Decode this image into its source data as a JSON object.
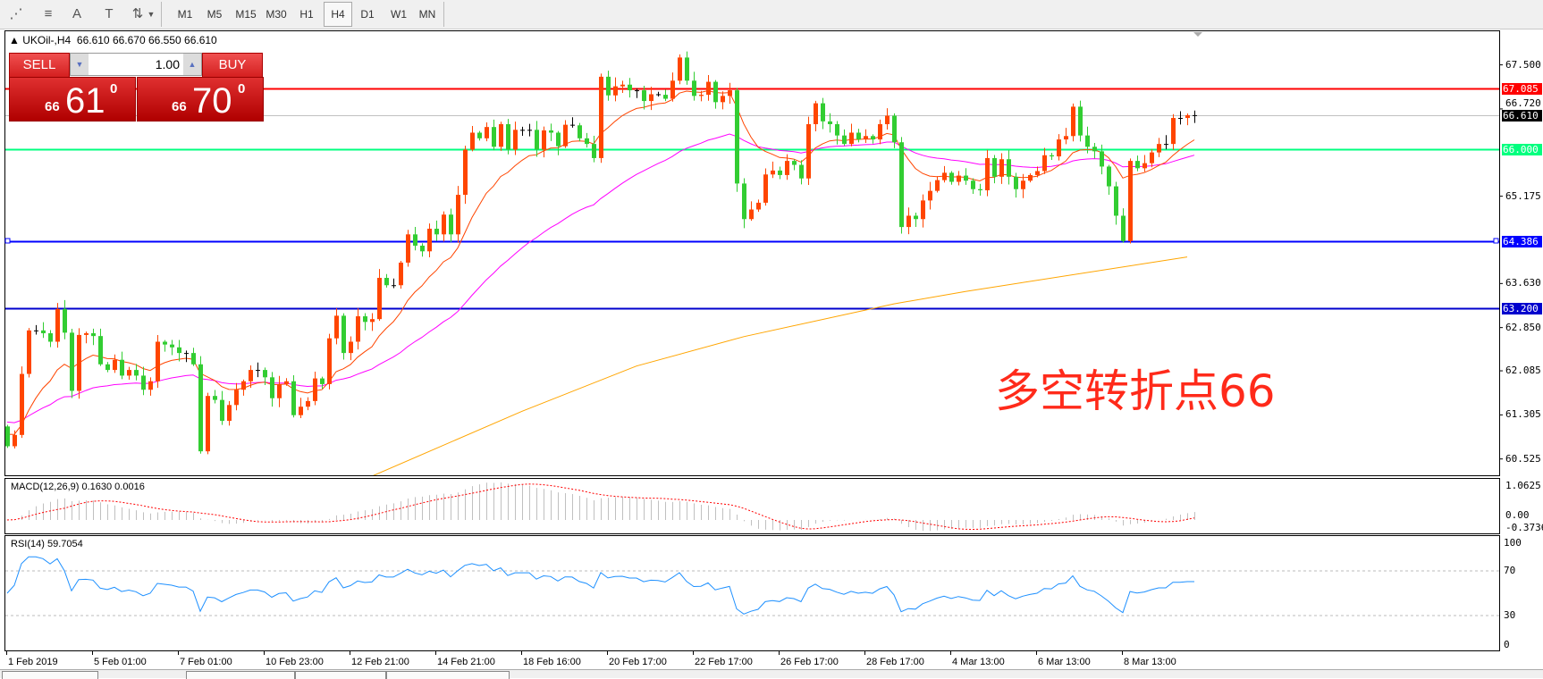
{
  "toolbar": {
    "tools": [
      {
        "name": "elliott-wave-icon",
        "glyph": "⋰"
      },
      {
        "name": "fibonacci-icon",
        "glyph": "≡"
      },
      {
        "name": "text-icon",
        "glyph": "A"
      },
      {
        "name": "text-label-icon",
        "glyph": "T"
      },
      {
        "name": "arrows-icon",
        "glyph": "⇅"
      }
    ],
    "timeframes": [
      "M1",
      "M5",
      "M15",
      "M30",
      "H1",
      "H4",
      "D1",
      "W1",
      "MN"
    ],
    "active_timeframe": "H4"
  },
  "header": {
    "symbol": "UKOil-,H4",
    "ohlc": "66.610 66.670 66.550 66.610"
  },
  "trade_panel": {
    "sell_label": "SELL",
    "buy_label": "BUY",
    "lot": "1.00",
    "sell_prefix": "66",
    "sell_big": "61",
    "sell_sup": "0",
    "buy_prefix": "66",
    "buy_big": "70",
    "buy_sup": "0"
  },
  "annotation": "多空转折点66",
  "price_axis": [
    "67.500",
    "66.720",
    "65.175",
    "63.630",
    "62.850",
    "62.085",
    "61.305",
    "60.525"
  ],
  "levels": [
    {
      "price": 67.085,
      "label": "67.085",
      "color": "#ff0000"
    },
    {
      "price": 66.61,
      "label": "66.610",
      "color": "#000000",
      "line": "#c0c0c0"
    },
    {
      "price": 66.0,
      "label": "66.000",
      "color": "#00ff7f"
    },
    {
      "price": 64.386,
      "label": "64.386",
      "color": "#0000ff"
    },
    {
      "price": 63.2,
      "label": "63.200",
      "color": "#0000cd"
    }
  ],
  "time_axis": [
    "1 Feb 2019",
    "5 Feb 01:00",
    "7 Feb 01:00",
    "10 Feb 23:00",
    "12 Feb 21:00",
    "14 Feb 21:00",
    "18 Feb 16:00",
    "20 Feb 17:00",
    "22 Feb 17:00",
    "26 Feb 17:00",
    "28 Feb 17:00",
    "4 Mar 13:00",
    "6 Mar 13:00",
    "8 Mar 13:00"
  ],
  "macd": {
    "label": "MACD(12,26,9) 0.1630 0.0016",
    "axis": [
      "1.0625",
      "0.00",
      "-0.3736"
    ]
  },
  "rsi": {
    "label": "RSI(14) 59.7054",
    "axis": [
      "100",
      "70",
      "30",
      "0"
    ]
  },
  "colors": {
    "bull": "#ff4500",
    "bear": "#32cd32",
    "doji": "#000000",
    "ma_fast": "#ff4500",
    "ma_mid": "#ff00ff",
    "ma_slow": "#ffa500",
    "rsi": "#1e90ff",
    "macd_hist": "#c0c0c0",
    "macd_signal": "#ff0000"
  },
  "chart_data": {
    "type": "candlestick",
    "first_open": 61.1,
    "closes": [
      60.75,
      60.95,
      62.03,
      62.8,
      62.8,
      62.75,
      62.6,
      63.18,
      62.76,
      61.73,
      62.72,
      62.75,
      62.7,
      62.2,
      62.1,
      62.28,
      62.0,
      62.1,
      62.0,
      61.75,
      61.9,
      62.6,
      62.55,
      62.5,
      62.4,
      62.4,
      62.2,
      60.66,
      61.64,
      61.57,
      61.2,
      61.48,
      61.75,
      61.9,
      62.1,
      62.1,
      61.97,
      61.6,
      61.85,
      61.9,
      61.3,
      61.45,
      61.55,
      61.95,
      61.85,
      62.66,
      63.06,
      62.4,
      62.6,
      63.05,
      62.95,
      63.0,
      63.73,
      63.6,
      63.6,
      64.0,
      64.5,
      64.3,
      64.2,
      64.6,
      64.5,
      64.85,
      64.5,
      65.2,
      66.0,
      66.3,
      66.2,
      66.4,
      66.05,
      66.45,
      66.0,
      66.35,
      66.35,
      66.35,
      66.0,
      66.34,
      66.3,
      66.06,
      66.44,
      66.43,
      66.2,
      66.1,
      65.85,
      67.29,
      66.96,
      67.12,
      67.15,
      67.05,
      67.05,
      66.86,
      66.98,
      66.97,
      66.9,
      67.22,
      67.63,
      67.22,
      66.95,
      66.97,
      67.2,
      66.84,
      66.95,
      67.05,
      65.4,
      64.77,
      64.94,
      65.06,
      65.56,
      65.63,
      65.55,
      65.8,
      65.73,
      65.49,
      66.45,
      66.82,
      66.5,
      66.45,
      66.25,
      66.1,
      66.3,
      66.18,
      66.24,
      66.18,
      66.45,
      66.6,
      66.13,
      64.63,
      64.83,
      64.77,
      65.1,
      65.27,
      65.46,
      65.59,
      65.43,
      65.54,
      65.45,
      65.3,
      65.28,
      65.85,
      65.52,
      65.83,
      65.52,
      65.3,
      65.45,
      65.55,
      65.62,
      65.9,
      65.88,
      66.18,
      66.24,
      66.76,
      66.25,
      66.05,
      65.97,
      65.7,
      65.35,
      64.83,
      64.38,
      65.8,
      65.67,
      65.76,
      65.95,
      66.1,
      66.1,
      66.56,
      66.56,
      66.61,
      66.61
    ],
    "ma_slow": [
      [
        51,
        60.22
      ],
      [
        72,
        61.37
      ],
      [
        88,
        62.17
      ],
      [
        103,
        62.69
      ],
      [
        124,
        63.27
      ],
      [
        134,
        63.49
      ],
      [
        165,
        64.1
      ]
    ]
  }
}
